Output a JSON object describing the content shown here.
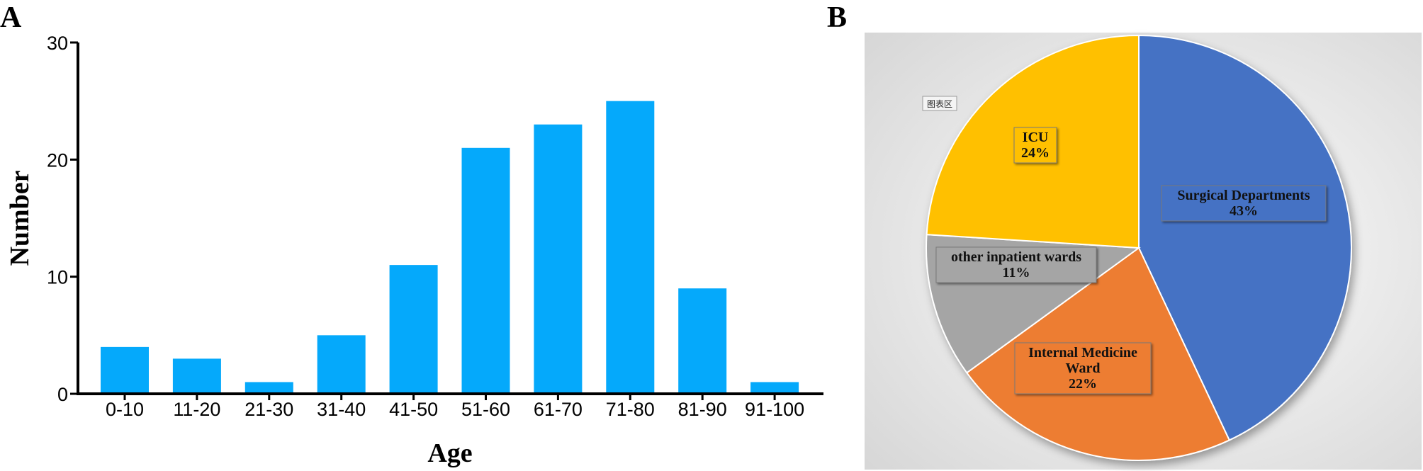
{
  "panel_a_letter": "A",
  "panel_b_letter": "B",
  "chart_data": [
    {
      "type": "bar",
      "title": "",
      "xlabel": "Age",
      "ylabel": "Number",
      "categories": [
        "0-10",
        "11-20",
        "21-30",
        "31-40",
        "41-50",
        "51-60",
        "61-70",
        "71-80",
        "81-90",
        "91-100"
      ],
      "values": [
        4,
        3,
        1,
        5,
        11,
        21,
        23,
        25,
        9,
        1
      ],
      "ylim": [
        0,
        30
      ],
      "yticks": [
        "0",
        "10",
        "20",
        "30"
      ],
      "bar_color": "#05A9FB",
      "grid": false
    },
    {
      "type": "pie",
      "title": "",
      "chart_area_label": "图表区",
      "slices": [
        {
          "name": "Surgical Departments",
          "value": 43,
          "label": "43%",
          "color": "#4472C4"
        },
        {
          "name": "Internal Medicine Ward",
          "value": 22,
          "label": "22%",
          "color": "#ED7D31"
        },
        {
          "name": "other inpatient wards",
          "value": 11,
          "label": "11%",
          "color": "#A5A5A5"
        },
        {
          "name": "ICU",
          "value": 24,
          "label": "24%",
          "color": "#FFC000"
        }
      ]
    }
  ]
}
